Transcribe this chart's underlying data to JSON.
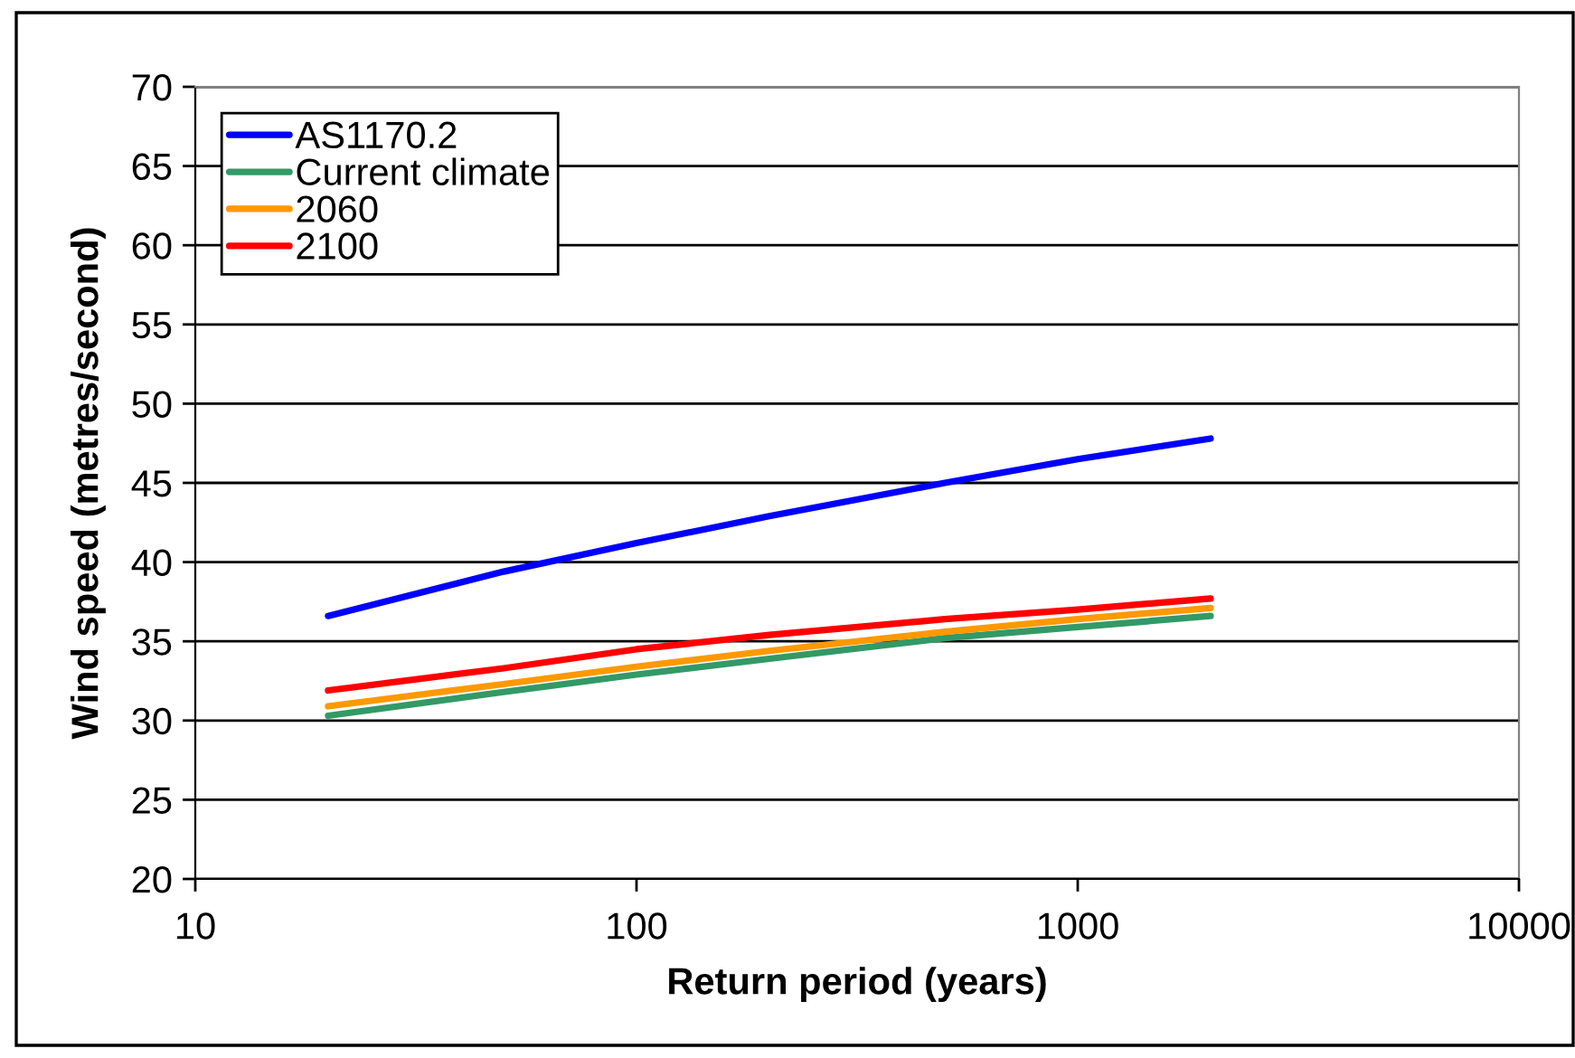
{
  "chart_data": {
    "type": "line",
    "xlabel": "Return period (years)",
    "ylabel": "Wind speed (metres/second)",
    "log": "x",
    "xlim": [
      10,
      10000
    ],
    "xticks": [
      10,
      100,
      1000,
      10000
    ],
    "ylim": [
      20,
      70
    ],
    "yticks": [
      20,
      25,
      30,
      35,
      40,
      45,
      50,
      55,
      60,
      65,
      70
    ],
    "grid": "y",
    "legend": "top left",
    "line_style": "solid",
    "x": [
      20,
      50,
      100,
      200,
      500,
      1000,
      2000
    ],
    "series": [
      {
        "name": "AS1170.2",
        "color": "#0000ff",
        "values": [
          36.6,
          39.4,
          41.2,
          42.9,
          45.0,
          46.5,
          47.8
        ]
      },
      {
        "name": "Current climate",
        "color": "#339966",
        "values": [
          30.3,
          31.8,
          32.9,
          33.9,
          35.2,
          35.9,
          36.6
        ]
      },
      {
        "name": "2060",
        "color": "#ff9900",
        "values": [
          30.9,
          32.3,
          33.4,
          34.4,
          35.6,
          36.4,
          37.1
        ]
      },
      {
        "name": "2100",
        "color": "#ff0000",
        "values": [
          31.9,
          33.3,
          34.5,
          35.4,
          36.4,
          37.0,
          37.7
        ]
      }
    ]
  }
}
